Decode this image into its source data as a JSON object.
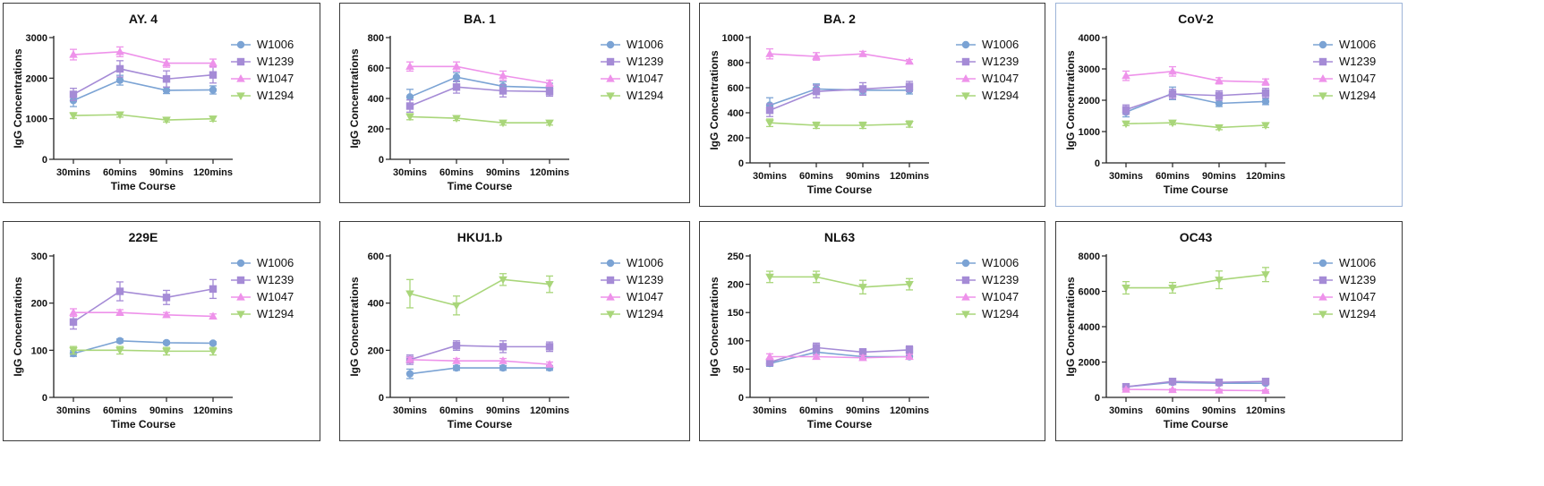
{
  "colors": {
    "W1006": "#7ba3d4",
    "W1239": "#a58bd6",
    "W1047": "#ee92ea",
    "W1294": "#a9d67a"
  },
  "chart_data": [
    {
      "type": "line",
      "title": "AY. 4",
      "xlabel": "Time Course",
      "ylabel": "IgG Concentrations",
      "categories": [
        "30mins",
        "60mins",
        "90mins",
        "120mins"
      ],
      "ylim": [
        0,
        3000
      ],
      "yticks": [
        0,
        1000,
        2000,
        3000
      ],
      "series": [
        {
          "name": "W1006",
          "marker": "circle",
          "values": [
            1450,
            1950,
            1700,
            1710
          ],
          "errors": [
            150,
            120,
            80,
            100
          ]
        },
        {
          "name": "W1239",
          "marker": "square",
          "values": [
            1600,
            2230,
            1980,
            2080
          ],
          "errors": [
            150,
            200,
            200,
            200
          ]
        },
        {
          "name": "W1047",
          "marker": "triangle-up",
          "values": [
            2580,
            2650,
            2370,
            2370
          ],
          "errors": [
            130,
            120,
            100,
            100
          ]
        },
        {
          "name": "W1294",
          "marker": "triangle-down",
          "values": [
            1080,
            1100,
            970,
            1000
          ],
          "errors": [
            70,
            60,
            50,
            60
          ]
        }
      ]
    },
    {
      "type": "line",
      "title": "BA. 1",
      "xlabel": "Time Course",
      "ylabel": "IgG Concentrations",
      "categories": [
        "30mins",
        "60mins",
        "90mins",
        "120mins"
      ],
      "ylim": [
        0,
        800
      ],
      "yticks": [
        0,
        200,
        400,
        600,
        800
      ],
      "series": [
        {
          "name": "W1006",
          "marker": "circle",
          "values": [
            410,
            540,
            480,
            470
          ],
          "errors": [
            50,
            30,
            30,
            30
          ]
        },
        {
          "name": "W1239",
          "marker": "square",
          "values": [
            350,
            475,
            450,
            445
          ],
          "errors": [
            40,
            40,
            40,
            30
          ]
        },
        {
          "name": "W1047",
          "marker": "triangle-up",
          "values": [
            610,
            610,
            550,
            500
          ],
          "errors": [
            30,
            30,
            30,
            20
          ]
        },
        {
          "name": "W1294",
          "marker": "triangle-down",
          "values": [
            280,
            270,
            240,
            240
          ],
          "errors": [
            20,
            15,
            15,
            15
          ]
        }
      ]
    },
    {
      "type": "line",
      "title": "BA. 2",
      "xlabel": "Time Course",
      "ylabel": "IgG Concentrations",
      "categories": [
        "30mins",
        "60mins",
        "90mins",
        "120mins"
      ],
      "ylim": [
        0,
        1000
      ],
      "yticks": [
        0,
        200,
        400,
        600,
        800,
        1000
      ],
      "series": [
        {
          "name": "W1006",
          "marker": "circle",
          "values": [
            460,
            590,
            580,
            580
          ],
          "errors": [
            60,
            40,
            30,
            30
          ]
        },
        {
          "name": "W1239",
          "marker": "square",
          "values": [
            420,
            570,
            590,
            610
          ],
          "errors": [
            50,
            50,
            50,
            40
          ]
        },
        {
          "name": "W1047",
          "marker": "triangle-up",
          "values": [
            870,
            850,
            870,
            810
          ],
          "errors": [
            40,
            30,
            20,
            15
          ]
        },
        {
          "name": "W1294",
          "marker": "triangle-down",
          "values": [
            320,
            300,
            300,
            310
          ],
          "errors": [
            30,
            25,
            25,
            25
          ]
        }
      ]
    },
    {
      "type": "line",
      "title": "CoV-2",
      "xlabel": "Time Course",
      "ylabel": "IgG Concentrations",
      "categories": [
        "30mins",
        "60mins",
        "90mins",
        "120mins"
      ],
      "ylim": [
        0,
        4000
      ],
      "yticks": [
        0,
        1000,
        2000,
        3000,
        4000
      ],
      "series": [
        {
          "name": "W1006",
          "marker": "circle",
          "values": [
            1620,
            2220,
            1900,
            1960
          ],
          "errors": [
            150,
            200,
            100,
            100
          ]
        },
        {
          "name": "W1239",
          "marker": "square",
          "values": [
            1700,
            2200,
            2150,
            2230
          ],
          "errors": [
            150,
            150,
            150,
            150
          ]
        },
        {
          "name": "W1047",
          "marker": "triangle-up",
          "values": [
            2780,
            2920,
            2620,
            2580
          ],
          "errors": [
            150,
            150,
            100,
            100
          ]
        },
        {
          "name": "W1294",
          "marker": "triangle-down",
          "values": [
            1250,
            1280,
            1130,
            1200
          ],
          "errors": [
            60,
            60,
            70,
            70
          ]
        }
      ]
    },
    {
      "type": "line",
      "title": "229E",
      "xlabel": "Time Course",
      "ylabel": "IgG Concentrations",
      "categories": [
        "30mins",
        "60mins",
        "90mins",
        "120mins"
      ],
      "ylim": [
        0,
        300
      ],
      "yticks": [
        0,
        100,
        200,
        300
      ],
      "series": [
        {
          "name": "W1006",
          "marker": "circle",
          "values": [
            93,
            120,
            116,
            115
          ],
          "errors": [
            6,
            4,
            3,
            3
          ]
        },
        {
          "name": "W1239",
          "marker": "square",
          "values": [
            160,
            225,
            212,
            230
          ],
          "errors": [
            15,
            20,
            15,
            20
          ]
        },
        {
          "name": "W1047",
          "marker": "triangle-up",
          "values": [
            180,
            180,
            175,
            172
          ],
          "errors": [
            8,
            6,
            5,
            5
          ]
        },
        {
          "name": "W1294",
          "marker": "triangle-down",
          "values": [
            100,
            100,
            98,
            98
          ],
          "errors": [
            8,
            8,
            8,
            8
          ]
        }
      ]
    },
    {
      "type": "line",
      "title": "HKU1.b",
      "xlabel": "Time Course",
      "ylabel": "IgG Concentrations",
      "categories": [
        "30mins",
        "60mins",
        "90mins",
        "120mins"
      ],
      "ylim": [
        0,
        600
      ],
      "yticks": [
        0,
        200,
        400,
        600
      ],
      "series": [
        {
          "name": "W1006",
          "marker": "circle",
          "values": [
            100,
            125,
            125,
            125
          ],
          "errors": [
            20,
            10,
            10,
            10
          ]
        },
        {
          "name": "W1239",
          "marker": "square",
          "values": [
            160,
            220,
            215,
            215
          ],
          "errors": [
            20,
            20,
            25,
            20
          ]
        },
        {
          "name": "W1047",
          "marker": "triangle-up",
          "values": [
            160,
            155,
            155,
            140
          ],
          "errors": [
            10,
            10,
            10,
            10
          ]
        },
        {
          "name": "W1294",
          "marker": "triangle-down",
          "values": [
            440,
            390,
            500,
            480
          ],
          "errors": [
            60,
            40,
            25,
            35
          ]
        }
      ]
    },
    {
      "type": "line",
      "title": "NL63",
      "xlabel": "Time Course",
      "ylabel": "IgG Concentrations",
      "categories": [
        "30mins",
        "60mins",
        "90mins",
        "120mins"
      ],
      "ylim": [
        0,
        250
      ],
      "yticks": [
        0,
        50,
        100,
        150,
        200,
        250
      ],
      "series": [
        {
          "name": "W1006",
          "marker": "circle",
          "values": [
            60,
            80,
            72,
            72
          ],
          "errors": [
            5,
            5,
            4,
            4
          ]
        },
        {
          "name": "W1239",
          "marker": "square",
          "values": [
            62,
            88,
            80,
            84
          ],
          "errors": [
            6,
            8,
            6,
            7
          ]
        },
        {
          "name": "W1047",
          "marker": "triangle-up",
          "values": [
            72,
            72,
            70,
            72
          ],
          "errors": [
            5,
            4,
            4,
            4
          ]
        },
        {
          "name": "W1294",
          "marker": "triangle-down",
          "values": [
            213,
            213,
            195,
            200
          ],
          "errors": [
            10,
            10,
            12,
            10
          ]
        }
      ]
    },
    {
      "type": "line",
      "title": "OC43",
      "xlabel": "Time Course",
      "ylabel": "IgG Concentrations",
      "categories": [
        "30mins",
        "60mins",
        "90mins",
        "120mins"
      ],
      "ylim": [
        0,
        8000
      ],
      "yticks": [
        0,
        2000,
        4000,
        6000,
        8000
      ],
      "series": [
        {
          "name": "W1006",
          "marker": "circle",
          "values": [
            600,
            850,
            800,
            800
          ],
          "errors": [
            80,
            80,
            80,
            80
          ]
        },
        {
          "name": "W1239",
          "marker": "square",
          "values": [
            600,
            900,
            850,
            900
          ],
          "errors": [
            80,
            100,
            100,
            100
          ]
        },
        {
          "name": "W1047",
          "marker": "triangle-up",
          "values": [
            450,
            430,
            400,
            380
          ],
          "errors": [
            50,
            50,
            50,
            50
          ]
        },
        {
          "name": "W1294",
          "marker": "triangle-down",
          "values": [
            6200,
            6200,
            6650,
            6950
          ],
          "errors": [
            350,
            300,
            500,
            400
          ]
        }
      ]
    }
  ]
}
